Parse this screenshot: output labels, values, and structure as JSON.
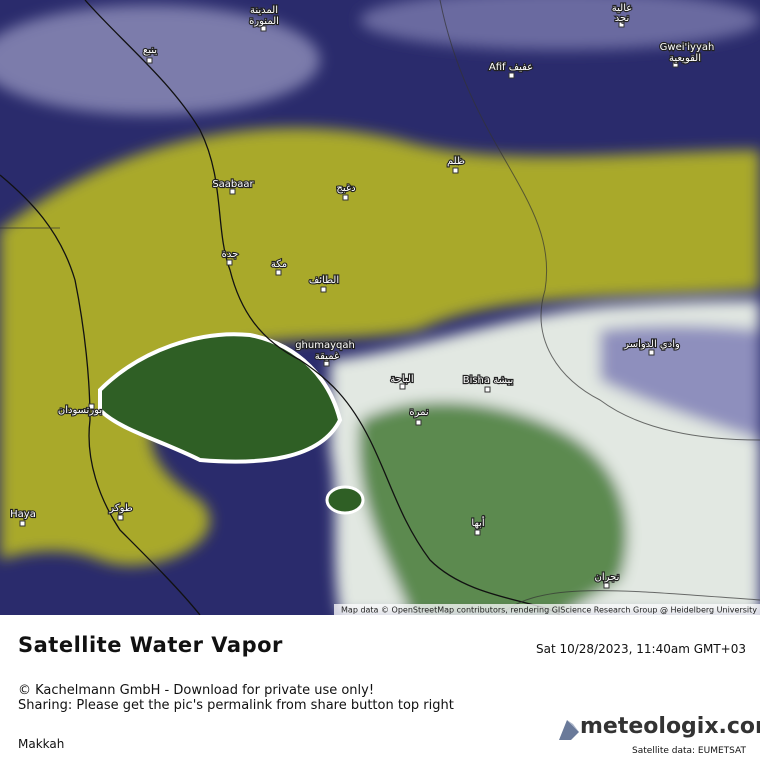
{
  "map": {
    "labels": [
      "المدينة",
      "المنورة",
      "ينبع",
      "عالية",
      "نجد",
      "Gwei'iyyah",
      "القويعية",
      "Afif عفيف",
      "ظلم",
      "Saabaar",
      "دغبج",
      "جدة",
      "مكة",
      "الطائف",
      "ghumayqah",
      "غميقة",
      "الباحة",
      "Bisha بيشة",
      "وادي الدواسر",
      "نمرة",
      "بورتسودان",
      "Haya",
      "طوكر",
      "أبها",
      "نجران"
    ],
    "attribution": "Map data © OpenStreetMap contributors, rendering GIScience Research Group @ Heidelberg University"
  },
  "footer": {
    "title": "Satellite Water Vapor",
    "timestamp": "Sat 10/28/2023, 11:40am GMT+03",
    "copyright": "© Kachelmann GmbH - Download for private use only!",
    "sharing": "Sharing: Please get the pic's permalink from share button top right",
    "region": "Makkah",
    "logo": "meteologix.com",
    "source": "Satellite data: EUMETSAT"
  }
}
